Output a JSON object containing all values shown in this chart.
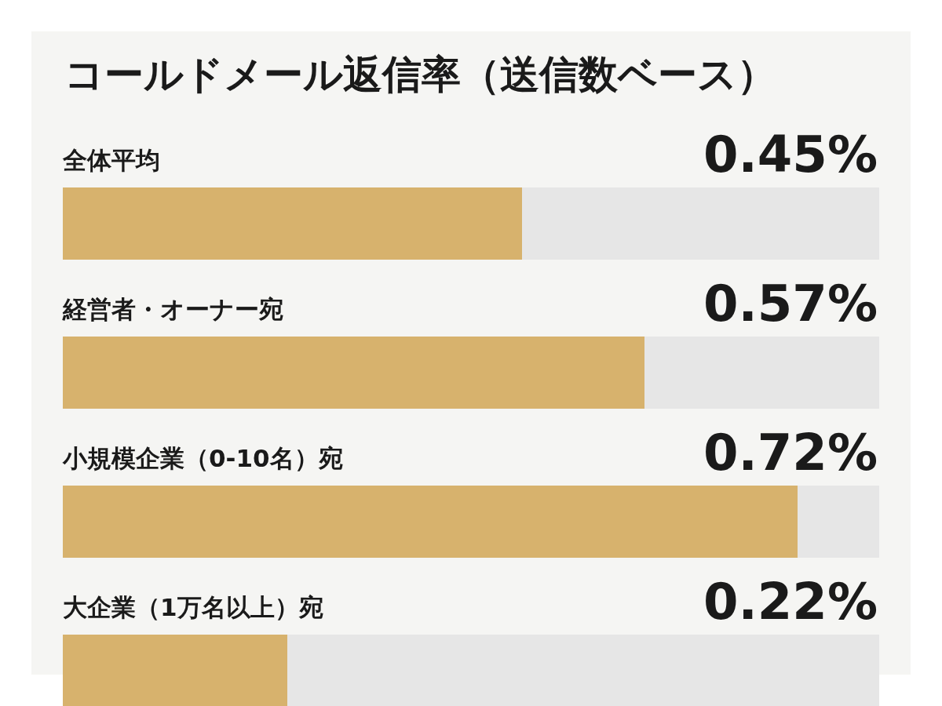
{
  "chart_data": {
    "type": "bar",
    "orientation": "horizontal",
    "title": "コールドメール返信率（送信数ベース）",
    "categories": [
      "全体平均",
      "経営者・オーナー宛",
      "小規模企業（0-10名）宛",
      "大企業（1万名以上）宛"
    ],
    "values": [
      0.45,
      0.57,
      0.72,
      0.22
    ],
    "value_labels": [
      "0.45%",
      "0.57%",
      "0.72%",
      "0.22%"
    ],
    "color": "#d7b26d",
    "xlim": [
      0,
      0.8
    ]
  }
}
